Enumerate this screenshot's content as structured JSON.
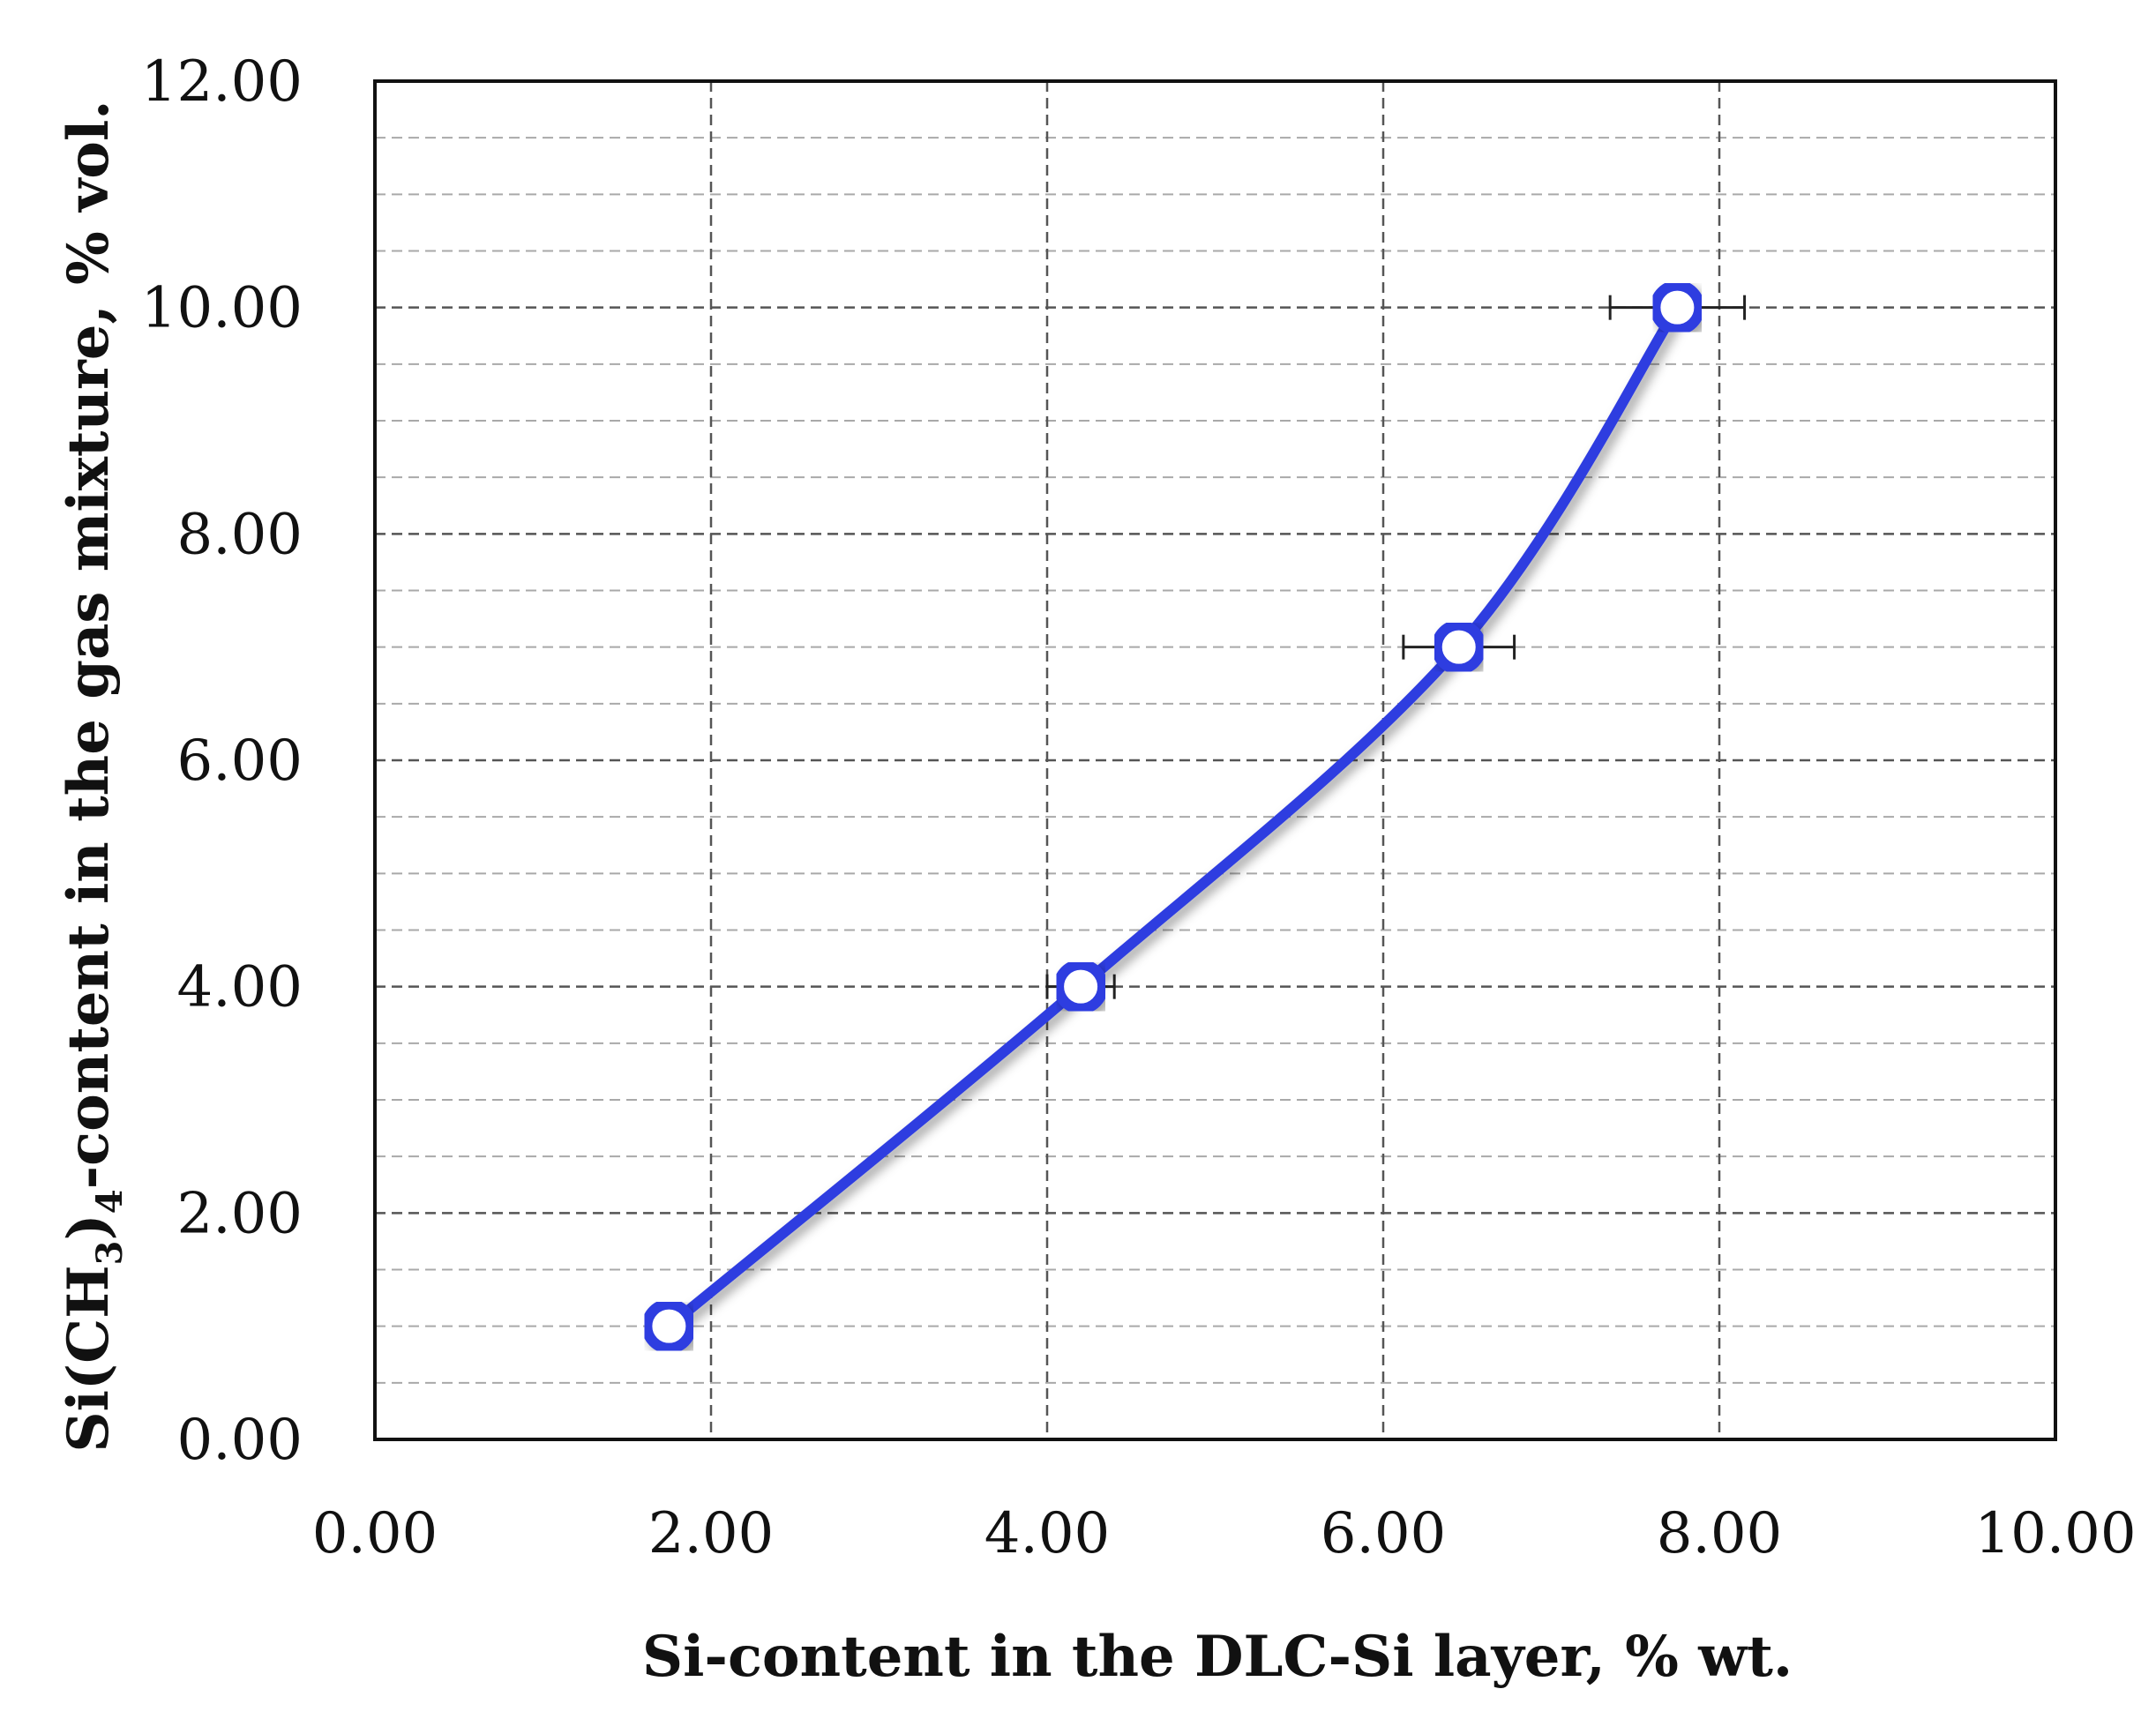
{
  "chart_data": {
    "type": "line",
    "xlabel": "Si-content in the DLC-Si layer, % wt.",
    "ylabel": {
      "prefix": "Si(CH",
      "sub1": "3",
      "mid": ")",
      "sub2": "4",
      "suffix": "-content in the gas mixture, % vol."
    },
    "xlim": [
      0,
      10
    ],
    "ylim": [
      0,
      12
    ],
    "x_ticks": [
      "0.00",
      "2.00",
      "4.00",
      "6.00",
      "8.00",
      "10.00"
    ],
    "y_ticks": [
      "0.00",
      "2.00",
      "4.00",
      "6.00",
      "8.00",
      "10.00",
      "12.00"
    ],
    "grid": {
      "major": true,
      "minor_y": true,
      "style": "dashed"
    },
    "smooth": true,
    "series": [
      {
        "x": [
          1.75,
          4.2,
          6.45,
          7.75
        ],
        "y": [
          1.0,
          4.0,
          7.0,
          10.0
        ],
        "x_err": [
          0.0,
          0.2,
          0.33,
          0.4
        ],
        "color": "#2f3de0",
        "marker": "hollow-circle"
      }
    ]
  }
}
